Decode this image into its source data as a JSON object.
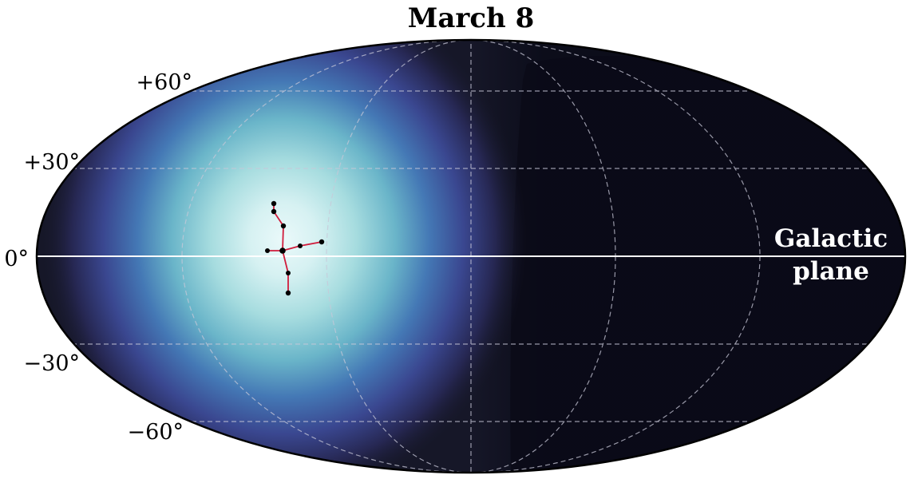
{
  "title": "March 8",
  "latitude_labels": [
    "+60°",
    "+30°",
    "0°",
    "−30°",
    "−60°"
  ],
  "galactic_plane_label": [
    "Galactic",
    "plane"
  ],
  "colors": {
    "sky_dark": "#0a0b18",
    "sky_bright": "#e8f8fa",
    "constellation_lines": "#d01c3c",
    "constellation_stars": "#000000",
    "graticule": "#c8c8d8",
    "galactic_plane": "#ffffff",
    "outline": "#000000"
  }
}
